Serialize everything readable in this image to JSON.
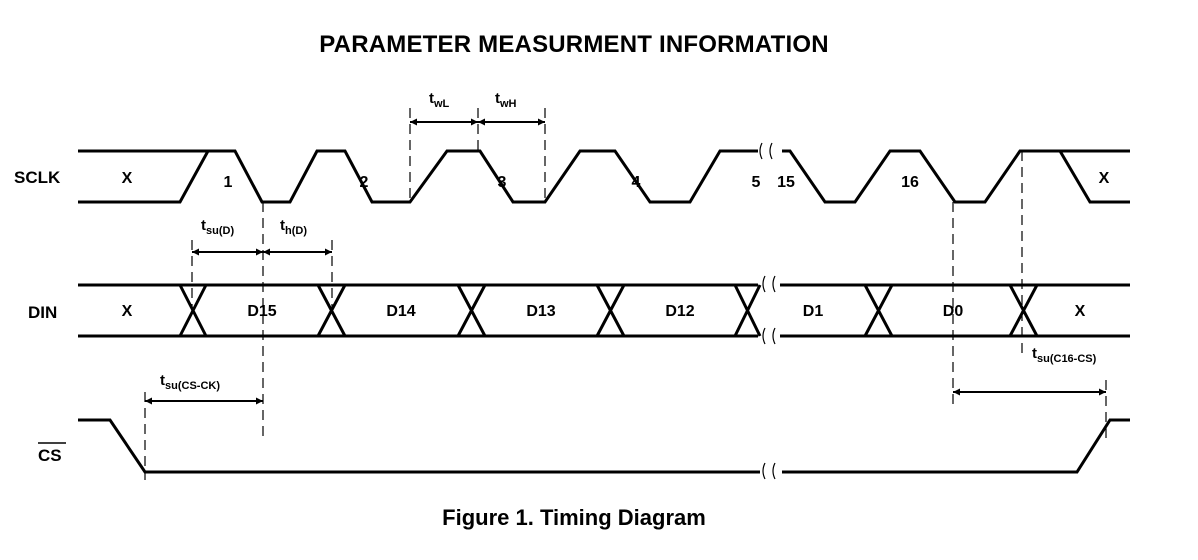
{
  "title": "PARAMETER MEASURMENT INFORMATION",
  "caption": "Figure 1. Timing Diagram",
  "signals": {
    "sclk": {
      "name": "SCLK",
      "labels": [
        "X",
        "1",
        "2",
        "3",
        "4",
        "5",
        "15",
        "16",
        "X"
      ]
    },
    "din": {
      "name": "DIN",
      "labels": [
        "X",
        "D15",
        "D14",
        "D13",
        "D12",
        "D1",
        "D0",
        "X"
      ]
    },
    "cs": {
      "name": "CS"
    }
  },
  "timing": {
    "twl": {
      "main": "t",
      "sub": "wL"
    },
    "twh": {
      "main": "t",
      "sub": "wH"
    },
    "tsud": {
      "main": "t",
      "sub": "su(D)"
    },
    "thd": {
      "main": "t",
      "sub": "h(D)"
    },
    "tsucsck": {
      "main": "t",
      "sub": "su(CS-CK)"
    },
    "tsuc16cs": {
      "main": "t",
      "sub": "su(C16-CS)"
    }
  }
}
